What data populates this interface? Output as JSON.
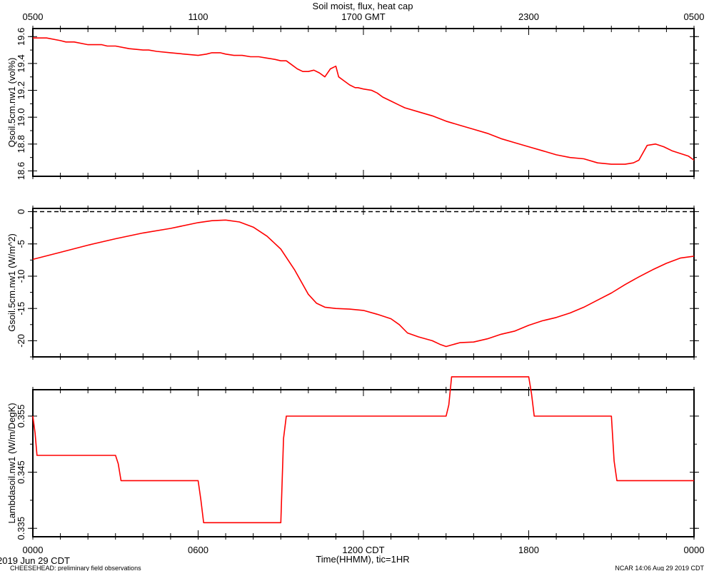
{
  "figure": {
    "title": "Soil moist, flux, heat cap",
    "top_axis_labels": [
      "0500",
      "1100",
      "1700 GMT",
      "2300",
      "0500"
    ],
    "bottom_axis_labels": [
      "0000",
      "0600",
      "1200 CDT",
      "1800",
      "0000"
    ],
    "xlabel": "Time(HHMM), tic=1HR",
    "footer_date": "2019 Jun 29 CDT",
    "footer_left": "CHEESEHEAD: preliminary field observations",
    "footer_right": "NCAR 14:06 Aug 29 2019 CDT",
    "line_color": "#ff0000",
    "zero_line_color": "#000000"
  },
  "chart_data": [
    {
      "type": "line",
      "ylabel": "Qsoil.5cm.nw1 (vol%)",
      "xlim": [
        0,
        24
      ],
      "ylim": [
        18.56,
        19.66
      ],
      "yticks": [
        18.6,
        18.8,
        19.0,
        19.2,
        19.4,
        19.6
      ],
      "ytick_labels": [
        "18.6",
        "18.8",
        "19.0",
        "19.2",
        "19.4",
        "19.6"
      ],
      "grid": false,
      "series": [
        {
          "x": [
            0,
            0.5,
            1.0,
            1.2,
            1.5,
            2.0,
            2.5,
            2.7,
            3.0,
            3.5,
            4.0,
            4.2,
            4.5,
            5.0,
            5.5,
            6.0,
            6.3,
            6.5,
            6.8,
            7.0,
            7.3,
            7.6,
            7.9,
            8.2,
            8.5,
            8.8,
            9.0,
            9.2,
            9.4,
            9.6,
            9.8,
            10.0,
            10.2,
            10.4,
            10.6,
            10.8,
            11.0,
            11.1,
            11.3,
            11.5,
            11.7,
            11.8,
            12.0,
            12.3,
            12.5,
            12.7,
            13.0,
            13.3,
            13.5,
            14.0,
            14.5,
            15.0,
            15.5,
            16.0,
            16.5,
            17.0,
            17.5,
            18.0,
            18.5,
            19.0,
            19.5,
            20.0,
            20.5,
            21.0,
            21.5,
            21.8,
            22.0,
            22.3,
            22.6,
            22.9,
            23.2,
            23.5,
            23.8,
            24.0
          ],
          "values": [
            19.59,
            19.59,
            19.57,
            19.56,
            19.56,
            19.54,
            19.54,
            19.53,
            19.53,
            19.51,
            19.5,
            19.5,
            19.49,
            19.48,
            19.47,
            19.46,
            19.47,
            19.48,
            19.48,
            19.47,
            19.46,
            19.46,
            19.45,
            19.45,
            19.44,
            19.43,
            19.42,
            19.42,
            19.39,
            19.36,
            19.34,
            19.34,
            19.35,
            19.33,
            19.3,
            19.36,
            19.38,
            19.3,
            19.27,
            19.24,
            19.22,
            19.22,
            19.21,
            19.2,
            19.18,
            19.15,
            19.12,
            19.09,
            19.07,
            19.04,
            19.01,
            18.97,
            18.94,
            18.91,
            18.88,
            18.84,
            18.81,
            18.78,
            18.75,
            18.72,
            18.7,
            18.69,
            18.66,
            18.65,
            18.65,
            18.66,
            18.68,
            18.79,
            18.8,
            18.78,
            18.75,
            18.73,
            18.71,
            18.68
          ]
        }
      ]
    },
    {
      "type": "line",
      "ylabel": "Gsoil.5cm.nw1 (W/m^2)",
      "xlim": [
        0,
        24
      ],
      "ylim": [
        -22.5,
        0.5
      ],
      "yticks": [
        -20,
        -15,
        -10,
        -5,
        0
      ],
      "ytick_labels": [
        "-20",
        "-15",
        "-10",
        "-5",
        "0"
      ],
      "zero_line": 0,
      "grid": false,
      "series": [
        {
          "x": [
            0,
            1.0,
            2.0,
            3.0,
            4.0,
            5.0,
            6.0,
            6.5,
            7.0,
            7.5,
            8.0,
            8.5,
            9.0,
            9.5,
            10.0,
            10.3,
            10.6,
            11.0,
            11.5,
            12.0,
            12.5,
            13.0,
            13.3,
            13.6,
            14.0,
            14.5,
            14.8,
            15.0,
            15.5,
            16.0,
            16.5,
            17.0,
            17.5,
            18.0,
            18.5,
            19.0,
            19.5,
            20.0,
            20.5,
            21.0,
            21.5,
            22.0,
            22.5,
            23.0,
            23.5,
            24.0
          ],
          "values": [
            -7.4,
            -6.3,
            -5.2,
            -4.2,
            -3.3,
            -2.6,
            -1.7,
            -1.4,
            -1.3,
            -1.6,
            -2.4,
            -3.8,
            -5.8,
            -9.0,
            -12.8,
            -14.2,
            -14.8,
            -15.0,
            -15.1,
            -15.3,
            -15.9,
            -16.6,
            -17.5,
            -18.8,
            -19.4,
            -20.0,
            -20.6,
            -20.9,
            -20.3,
            -20.2,
            -19.7,
            -19.0,
            -18.5,
            -17.6,
            -16.9,
            -16.4,
            -15.7,
            -14.8,
            -13.7,
            -12.6,
            -11.3,
            -10.1,
            -9.0,
            -8.0,
            -7.2,
            -6.9
          ]
        }
      ]
    },
    {
      "type": "line",
      "ylabel": "Lambdasoil.nw1 (W/m/DegK)",
      "xlim": [
        0,
        24
      ],
      "ylim": [
        0.3335,
        0.3597
      ],
      "yticks": [
        0.335,
        0.345,
        0.355
      ],
      "ytick_labels": [
        "0.335",
        "0.345",
        "0.355"
      ],
      "grid": false,
      "series": [
        {
          "x": [
            0,
            0.08,
            0.15,
            3.0,
            3.1,
            3.2,
            6.0,
            6.1,
            6.2,
            9.0,
            9.1,
            9.2,
            15.0,
            15.1,
            15.2,
            18.0,
            18.1,
            18.2,
            21.0,
            21.1,
            21.2,
            24.0
          ],
          "values": [
            0.355,
            0.352,
            0.348,
            0.348,
            0.3465,
            0.3435,
            0.3435,
            0.34,
            0.336,
            0.336,
            0.351,
            0.355,
            0.355,
            0.357,
            0.362,
            0.362,
            0.359,
            0.355,
            0.355,
            0.347,
            0.3435,
            0.3435
          ]
        }
      ]
    }
  ]
}
